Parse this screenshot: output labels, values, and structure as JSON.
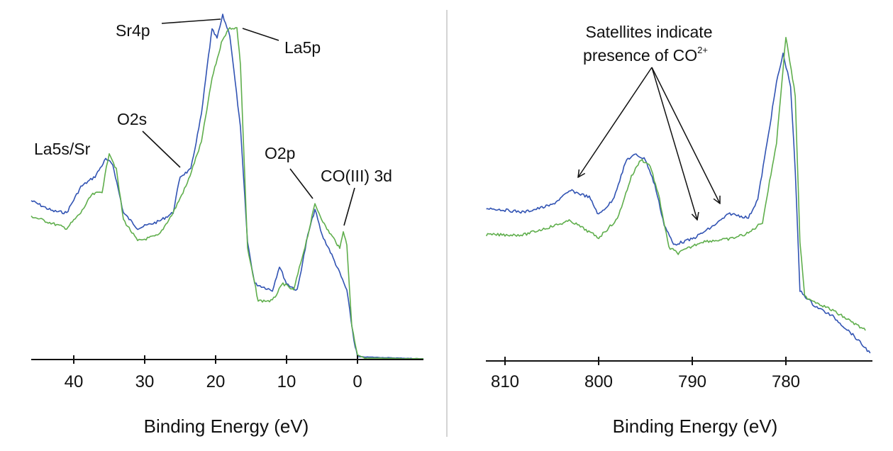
{
  "chart_data": [
    {
      "type": "line",
      "title": "",
      "xlabel": "Binding Energy (eV)",
      "ylabel": "",
      "x_reversed": true,
      "xlim": [
        46,
        -9.3
      ],
      "ylim": [
        0,
        100
      ],
      "y_axis_shown": false,
      "grid": false,
      "legend": "none",
      "xticks": [
        40,
        30,
        20,
        10,
        0
      ],
      "xtick_labels": [
        "40",
        "30",
        "20",
        "10",
        "0"
      ],
      "series": [
        {
          "color": "#3153b3",
          "x": [
            46,
            43,
            41,
            39,
            37,
            35.5,
            34.5,
            33,
            31,
            28,
            26,
            25,
            23.5,
            22,
            21,
            20.5,
            19.8,
            19,
            18,
            16.5,
            15.5,
            14.5,
            12,
            11,
            10,
            8.5,
            7,
            6,
            5,
            4,
            2.5,
            1.5,
            0.5,
            0,
            -9.3
          ],
          "y": [
            46,
            43,
            42.5,
            50,
            53,
            58,
            56.5,
            42.5,
            38,
            40,
            42.5,
            53,
            55,
            71,
            88,
            95.5,
            93,
            99.6,
            94,
            67,
            34,
            22,
            20,
            27,
            22,
            20,
            36,
            43.5,
            36,
            32,
            25,
            20,
            5.5,
            0.8,
            0.2
          ]
        },
        {
          "color": "#5fae4c",
          "x": [
            46,
            43,
            41,
            39,
            37.5,
            36,
            35,
            34,
            33,
            31,
            28,
            26,
            24,
            22,
            20.5,
            19,
            18,
            17,
            16.5,
            15.5,
            14,
            12,
            10.5,
            9,
            7,
            6,
            4.5,
            3,
            2.5,
            2,
            1.5,
            0.8,
            0,
            -1,
            -9.3
          ],
          "y": [
            41.5,
            39.4,
            38,
            42.5,
            47.6,
            48.7,
            60,
            55,
            40.5,
            34.3,
            36,
            42.5,
            51,
            63,
            81.5,
            93,
            96,
            96,
            85.6,
            32,
            17,
            17,
            22,
            20,
            36,
            45,
            38.4,
            34,
            32,
            37.4,
            33,
            9.7,
            1.4,
            0.4,
            0.2
          ]
        }
      ],
      "annotations": [
        {
          "text": "Sr4p",
          "target_x": 19
        },
        {
          "text": "La5p",
          "target_x": 17
        },
        {
          "text": "O2s",
          "target_x": 25
        },
        {
          "text": "La5s/Sr",
          "target_x": 35.5
        },
        {
          "text": "O2p",
          "target_x": 6
        },
        {
          "text": "CO(III) 3d",
          "target_x": 2
        }
      ]
    },
    {
      "type": "line",
      "title": "",
      "xlabel": "Binding Energy (eV)",
      "ylabel": "",
      "x_reversed": true,
      "xlim": [
        812,
        770.8
      ],
      "ylim": [
        0,
        100
      ],
      "y_axis_shown": false,
      "grid": false,
      "legend": "none",
      "xticks": [
        810,
        800,
        790,
        780
      ],
      "xtick_labels": [
        "810",
        "800",
        "790",
        "780"
      ],
      "series": [
        {
          "color": "#3153b3",
          "x": [
            812,
            808,
            805,
            803,
            801,
            800,
            798.5,
            797,
            796,
            795,
            794,
            793,
            792,
            790,
            788,
            786,
            784,
            783,
            782,
            781,
            780.3,
            779.5,
            779,
            778.5,
            777,
            775,
            773,
            771
          ],
          "y": [
            46.7,
            45.4,
            47.6,
            52,
            50,
            44.6,
            49,
            61.5,
            63,
            61.5,
            53.7,
            41.6,
            35.5,
            37.2,
            40.7,
            45,
            43.7,
            49.4,
            66.7,
            85,
            93.7,
            84,
            58,
            21.4,
            17,
            13.6,
            8.4,
            2.4
          ]
        },
        {
          "color": "#5fae4c",
          "x": [
            812,
            808,
            803,
            800,
            798,
            796.5,
            795.5,
            794.5,
            793.5,
            792.5,
            791.5,
            789,
            786,
            784,
            782.5,
            781,
            780,
            779,
            778.5,
            778,
            775,
            773,
            771.5
          ],
          "y": [
            38.5,
            38.5,
            42.8,
            37.6,
            43.3,
            56.3,
            61.5,
            59.7,
            49.4,
            34.6,
            32.9,
            36.4,
            37.2,
            39,
            42.4,
            66.7,
            99,
            81,
            36.4,
            19.7,
            15.4,
            12,
            9.3
          ]
        }
      ],
      "annotations": [
        {
          "line1": "Satellites indicate",
          "line2": "presence of CO",
          "line2_sup": "2+",
          "target_x": [
            802.5,
            789.5,
            787
          ]
        }
      ]
    }
  ]
}
